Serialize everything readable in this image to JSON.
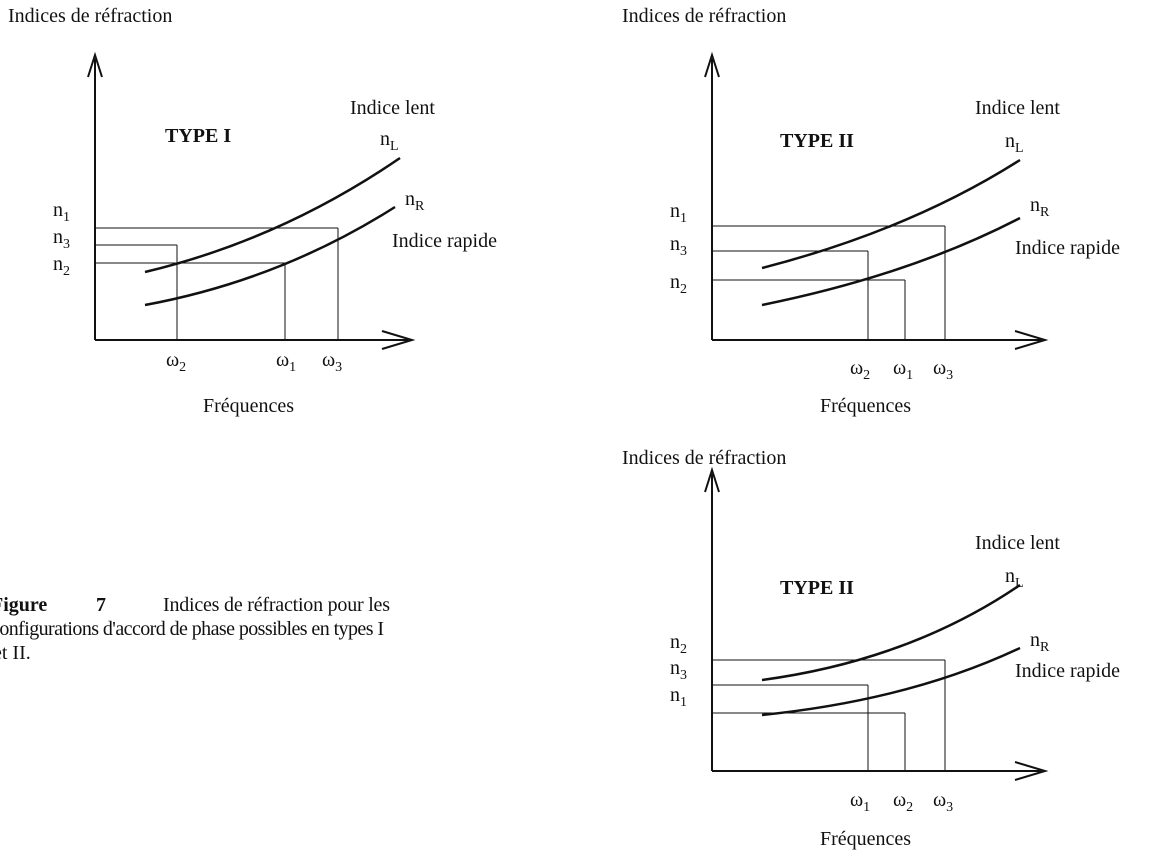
{
  "diagrams": [
    {
      "axis_title": "Indices de réfraction",
      "type_label": "TYPE I",
      "slow_label": "Indice lent",
      "slow_symbol": {
        "main": "n",
        "sub": "L"
      },
      "fast_symbol": {
        "main": "n",
        "sub": "R"
      },
      "fast_label": "Indice rapide",
      "index_labels": [
        {
          "main": "n",
          "sub": "1"
        },
        {
          "main": "n",
          "sub": "3"
        },
        {
          "main": "n",
          "sub": "2"
        }
      ],
      "freq_labels": [
        {
          "main": "ω",
          "sub": "2"
        },
        {
          "main": "ω",
          "sub": "1"
        },
        {
          "main": "ω",
          "sub": "3"
        }
      ],
      "x_title": "Fréquences"
    },
    {
      "axis_title": "Indices de réfraction",
      "type_label": "TYPE II",
      "slow_label": "Indice lent",
      "slow_symbol": {
        "main": "n",
        "sub": "L"
      },
      "fast_symbol": {
        "main": "n",
        "sub": "R"
      },
      "fast_label": "Indice rapide",
      "index_labels": [
        {
          "main": "n",
          "sub": "1"
        },
        {
          "main": "n",
          "sub": "3"
        },
        {
          "main": "n",
          "sub": "2"
        }
      ],
      "freq_labels": [
        {
          "main": "ω",
          "sub": "2"
        },
        {
          "main": "ω",
          "sub": "1"
        },
        {
          "main": "ω",
          "sub": "3"
        }
      ],
      "x_title": "Fréquences"
    },
    {
      "axis_title": "Indices de réfraction",
      "type_label": "TYPE II",
      "slow_label": "Indice lent",
      "slow_symbol": {
        "main": "n",
        "sub": "L"
      },
      "fast_symbol": {
        "main": "n",
        "sub": "R"
      },
      "fast_label": "Indice rapide",
      "index_labels": [
        {
          "main": "n",
          "sub": "2"
        },
        {
          "main": "n",
          "sub": "3"
        },
        {
          "main": "n",
          "sub": "1"
        }
      ],
      "freq_labels": [
        {
          "main": "ω",
          "sub": "1"
        },
        {
          "main": "ω",
          "sub": "2"
        },
        {
          "main": "ω",
          "sub": "3"
        }
      ],
      "x_title": "Fréquences"
    }
  ],
  "caption": {
    "label": "Figure",
    "number": "7",
    "line1": "Indices de réfraction pour les",
    "line2": "configurations d'accord de phase possibles en types I",
    "line3": "et II."
  }
}
